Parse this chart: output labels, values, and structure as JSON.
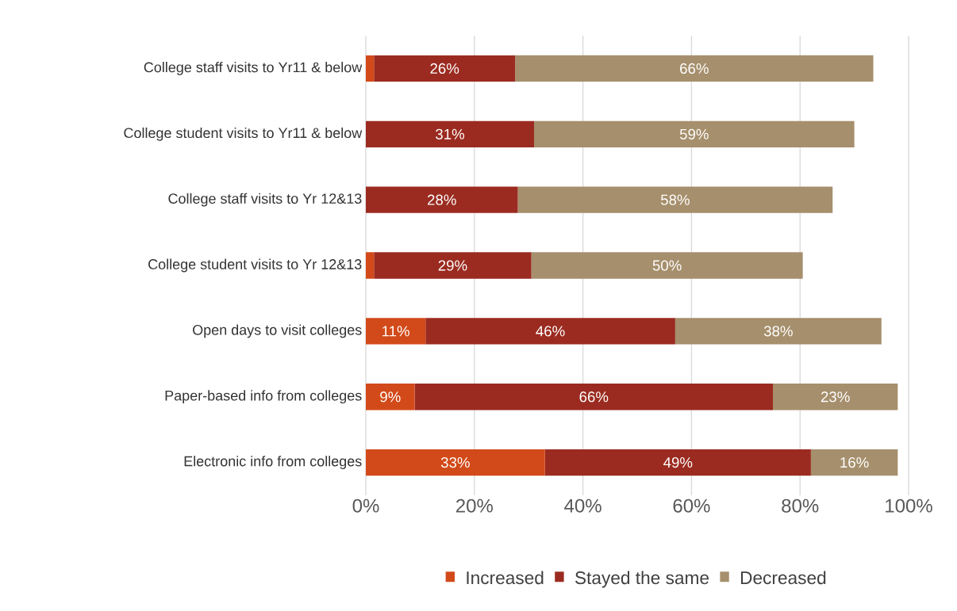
{
  "chart_data": {
    "type": "bar",
    "orientation": "horizontal",
    "stacked": true,
    "categories": [
      "College staff visits to Yr11 & below",
      "College student visits to Yr11 & below",
      "College staff visits to Yr 12&13",
      "College student visits to Yr 12&13",
      "Open days to visit colleges",
      "Paper-based info from colleges",
      "Electronic info from colleges"
    ],
    "series": [
      {
        "name": "Increased",
        "color": "#d24a19",
        "values": [
          1.5,
          0,
          0,
          1.5,
          11,
          9,
          33
        ],
        "value_labels": [
          null,
          null,
          null,
          null,
          "11%",
          "9%",
          "33%"
        ]
      },
      {
        "name": "Stayed the same",
        "color": "#9b2b20",
        "values": [
          26,
          31,
          28,
          29,
          46,
          66,
          49
        ],
        "value_labels": [
          "26%",
          "31%",
          "28%",
          "29%",
          "46%",
          "66%",
          "49%"
        ]
      },
      {
        "name": "Decreased",
        "color": "#a68f6c",
        "values": [
          66,
          59,
          58,
          50,
          38,
          23,
          16
        ],
        "value_labels": [
          "66%",
          "59%",
          "58%",
          "50%",
          "38%",
          "23%",
          "16%"
        ]
      }
    ],
    "xlim": [
      0,
      100
    ],
    "xticks": [
      {
        "value": 0,
        "label": "0%"
      },
      {
        "value": 20,
        "label": "20%"
      },
      {
        "value": 40,
        "label": "40%"
      },
      {
        "value": 60,
        "label": "60%"
      },
      {
        "value": 80,
        "label": "80%"
      },
      {
        "value": 100,
        "label": "100%"
      }
    ],
    "grid": "x",
    "legend": "bottom"
  }
}
